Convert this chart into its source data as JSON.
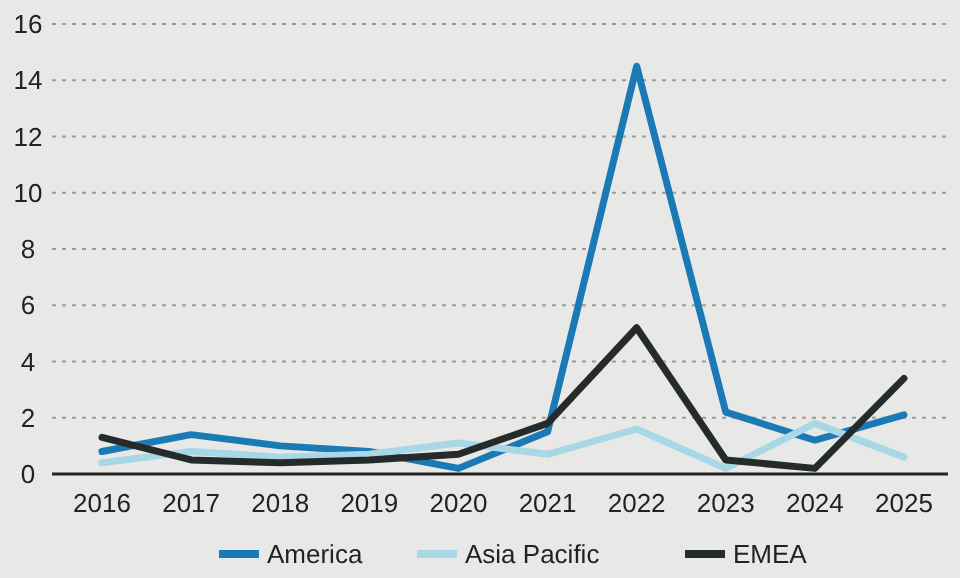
{
  "chart_data": {
    "type": "line",
    "categories": [
      "2016",
      "2017",
      "2018",
      "2019",
      "2020",
      "2021",
      "2022",
      "2023",
      "2024",
      "2025"
    ],
    "series": [
      {
        "name": "America",
        "color": "#1a7ab5",
        "values": [
          0.8,
          1.4,
          1.0,
          0.8,
          0.2,
          1.5,
          14.5,
          2.2,
          1.2,
          2.1
        ]
      },
      {
        "name": "Asia Pacific",
        "color": "#a8d8e6",
        "values": [
          0.4,
          0.8,
          0.6,
          0.7,
          1.1,
          0.7,
          1.6,
          0.2,
          1.8,
          0.6
        ]
      },
      {
        "name": "EMEA",
        "color": "#252a2a",
        "values": [
          1.3,
          0.5,
          0.4,
          0.5,
          0.7,
          1.8,
          5.2,
          0.5,
          0.2,
          3.4
        ]
      }
    ],
    "ylim": [
      0,
      16
    ],
    "yticks": [
      0,
      2,
      4,
      6,
      8,
      10,
      12,
      14,
      16
    ],
    "grid": "y",
    "legend": "bottom",
    "marker": "none",
    "line_style": "solid"
  }
}
